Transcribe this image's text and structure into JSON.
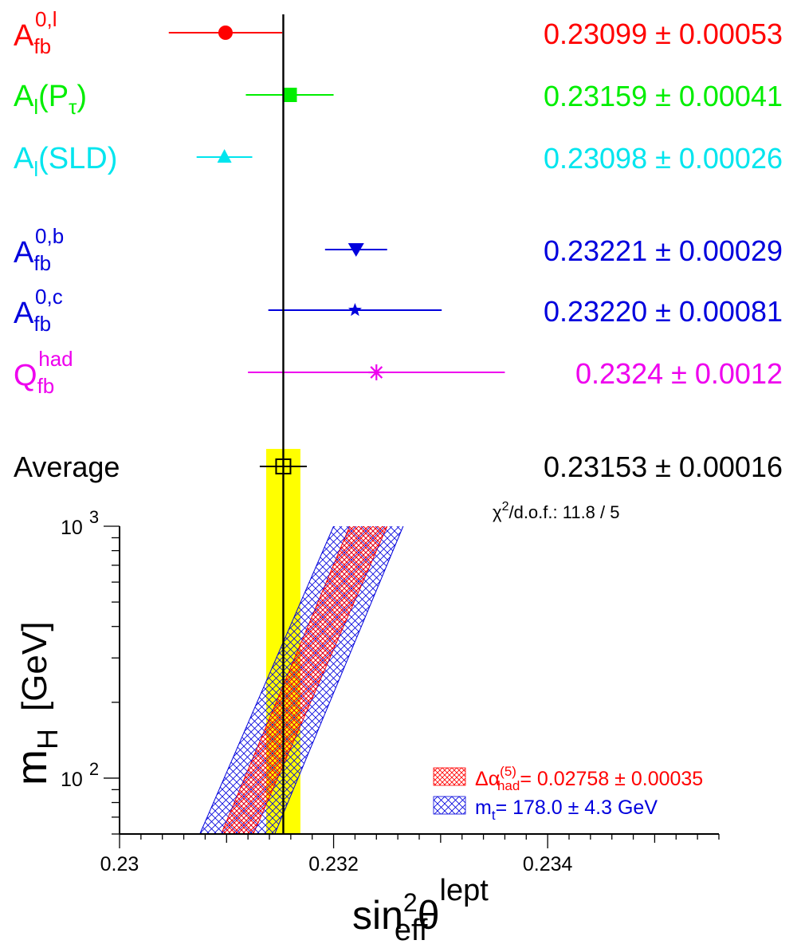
{
  "chart_data": {
    "type": "scatter",
    "x_axis": {
      "label_base": "sin",
      "label_sup_2": "2",
      "label_theta": "θ",
      "label_sup": "lept",
      "label_sub": "eff",
      "range": [
        0.23,
        0.2356
      ],
      "ticks": [
        "0.23",
        "0.232",
        "0.234"
      ],
      "tick_values": [
        0.23,
        0.232,
        0.234
      ]
    },
    "y_axis": {
      "label_m": "m",
      "label_sub": "H",
      "label_unit": "[GeV]",
      "scale": "log",
      "range": [
        60,
        1000
      ],
      "ticks": [
        {
          "value": 100,
          "base": "10",
          "exp": "2"
        },
        {
          "value": 1000,
          "base": "10",
          "exp": "3"
        }
      ]
    },
    "measurements": [
      {
        "label_main": "A",
        "label_sub": "fb",
        "label_sup": "0,l",
        "value": 0.23099,
        "error": 0.00053,
        "marker": "circle",
        "color": "#ff0000",
        "text": "0.23099 ± 0.00053"
      },
      {
        "label_main": "A",
        "label_sub": "l",
        "label_tail": "(P",
        "label_tail_sub": "τ",
        "label_end": ")",
        "value": 0.23159,
        "error": 0.00041,
        "marker": "square",
        "color": "#00ee00",
        "text": "0.23159 ± 0.00041"
      },
      {
        "label_main": "A",
        "label_sub": "l",
        "label_tail": "(SLD)",
        "value": 0.23098,
        "error": 0.00026,
        "marker": "triangle",
        "color": "#00e5ee",
        "text": "0.23098 ± 0.00026"
      },
      {
        "label_main": "A",
        "label_sub": "fb",
        "label_sup": "0,b",
        "value": 0.23221,
        "error": 0.00029,
        "marker": "triangle-down",
        "color": "#0000dd",
        "text": "0.23221 ± 0.00029"
      },
      {
        "label_main": "A",
        "label_sub": "fb",
        "label_sup": "0,c",
        "value": 0.2322,
        "error": 0.00081,
        "marker": "star",
        "color": "#0000dd",
        "text": "0.23220 ± 0.00081"
      },
      {
        "label_main": "Q",
        "label_sub": "fb",
        "label_sup": "had",
        "value": 0.2324,
        "error": 0.0012,
        "marker": "asterisk",
        "color": "#ee00ee",
        "text": "0.2324 ± 0.0012"
      }
    ],
    "average": {
      "label": "Average",
      "value": 0.23153,
      "error": 0.00016,
      "marker": "open-square",
      "color": "#000000",
      "text": "0.23153 ± 0.00016",
      "band_color": "#ffff00"
    },
    "chi2": {
      "chi_symbol": "χ",
      "sup": "2",
      "text": "/d.o.f.: 11.8 / 5"
    },
    "bands": [
      {
        "name": "delta-alpha",
        "color": "#ff0000",
        "lines": [
          {
            "x0": 0.23095,
            "y0": 60,
            "x1": 0.23215,
            "y1": 1000
          },
          {
            "x0": 0.23125,
            "y0": 60,
            "x1": 0.2325,
            "y1": 1000
          }
        ]
      },
      {
        "name": "mt",
        "color": "#0000dd",
        "lines": [
          {
            "x0": 0.23075,
            "y0": 60,
            "x1": 0.232,
            "y1": 1000
          },
          {
            "x0": 0.23145,
            "y0": 60,
            "x1": 0.23265,
            "y1": 1000
          }
        ]
      }
    ],
    "legend": [
      {
        "symbol": "Δα",
        "sup": "(5)",
        "sub": "had",
        "text": "= 0.02758 ± 0.00035",
        "color": "#ff0000"
      },
      {
        "symbol": "m",
        "sub": "t",
        "text": "= 178.0 ± 4.3 GeV",
        "color": "#0000dd"
      }
    ],
    "grid": false,
    "legend_position": "bottom-right"
  }
}
